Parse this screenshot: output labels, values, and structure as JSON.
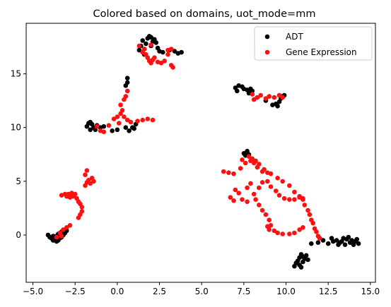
{
  "chart_data": {
    "type": "scatter",
    "title": "Colored based on domains, uot_mode=mm",
    "xlabel": "",
    "ylabel": "",
    "xlim": [
      -5.4,
      15.3
    ],
    "ylim": [
      -4.4,
      19.7
    ],
    "xticks": [
      -5.0,
      -2.5,
      0.0,
      2.5,
      5.0,
      7.5,
      10.0,
      12.5,
      15.0
    ],
    "xtick_labels": [
      "−5.0",
      "−2.5",
      "0.0",
      "2.5",
      "5.0",
      "7.5",
      "10.0",
      "12.5",
      "15.0"
    ],
    "yticks": [
      0,
      5,
      10,
      15
    ],
    "ytick_labels": [
      "0",
      "5",
      "10",
      "15"
    ],
    "grid": false,
    "legend_position": "top-right",
    "series": [
      {
        "name": "ADT",
        "color": "#000000",
        "points": [
          [
            -4.1,
            0.0
          ],
          [
            -4.0,
            -0.2
          ],
          [
            -3.9,
            -0.3
          ],
          [
            -3.8,
            -0.5
          ],
          [
            -3.7,
            -0.4
          ],
          [
            -3.6,
            -0.6
          ],
          [
            -3.5,
            -0.5
          ],
          [
            -3.4,
            -0.3
          ],
          [
            -3.3,
            -0.2
          ],
          [
            -3.2,
            0.0
          ],
          [
            -3.1,
            0.2
          ],
          [
            -3.0,
            0.4
          ],
          [
            -3.5,
            0.1
          ],
          [
            -3.6,
            -0.1
          ],
          [
            -3.3,
            0.3
          ],
          [
            -3.8,
            -0.1
          ],
          [
            -3.4,
            0.0
          ],
          [
            -1.8,
            10.1
          ],
          [
            -1.7,
            10.4
          ],
          [
            -1.6,
            10.5
          ],
          [
            -1.5,
            10.3
          ],
          [
            -1.4,
            10.0
          ],
          [
            -1.6,
            9.8
          ],
          [
            -1.3,
            9.8
          ],
          [
            -1.2,
            10.2
          ],
          [
            -1.0,
            10.0
          ],
          [
            -0.8,
            10.1
          ],
          [
            -0.3,
            9.7
          ],
          [
            0.0,
            9.8
          ],
          [
            0.5,
            10.0
          ],
          [
            0.7,
            9.7
          ],
          [
            0.9,
            10.0
          ],
          [
            1.1,
            10.3
          ],
          [
            1.0,
            9.9
          ],
          [
            0.6,
            14.2
          ],
          [
            0.6,
            14.6
          ],
          [
            0.5,
            13.9
          ],
          [
            1.3,
            17.2
          ],
          [
            1.4,
            17.6
          ],
          [
            1.5,
            18.1
          ],
          [
            1.6,
            17.3
          ],
          [
            1.7,
            17.8
          ],
          [
            1.8,
            18.3
          ],
          [
            1.9,
            18.5
          ],
          [
            2.0,
            18.4
          ],
          [
            2.1,
            18.0
          ],
          [
            2.2,
            18.2
          ],
          [
            2.3,
            17.9
          ],
          [
            2.4,
            17.4
          ],
          [
            2.5,
            17.1
          ],
          [
            2.7,
            17.0
          ],
          [
            3.1,
            17.2
          ],
          [
            3.4,
            17.1
          ],
          [
            3.6,
            16.9
          ],
          [
            3.8,
            17.0
          ],
          [
            1.6,
            16.8
          ],
          [
            2.0,
            17.6
          ],
          [
            7.0,
            13.7
          ],
          [
            7.1,
            13.4
          ],
          [
            7.2,
            13.9
          ],
          [
            7.4,
            13.8
          ],
          [
            7.5,
            13.6
          ],
          [
            7.7,
            13.5
          ],
          [
            7.8,
            13.2
          ],
          [
            7.9,
            13.6
          ],
          [
            8.0,
            13.4
          ],
          [
            8.8,
            12.5
          ],
          [
            9.2,
            12.1
          ],
          [
            9.5,
            12.0
          ],
          [
            9.6,
            12.4
          ],
          [
            9.8,
            12.9
          ],
          [
            9.9,
            13.0
          ],
          [
            9.7,
            12.7
          ],
          [
            9.4,
            12.2
          ],
          [
            7.5,
            7.6
          ],
          [
            7.7,
            7.8
          ],
          [
            7.8,
            7.5
          ],
          [
            7.6,
            7.4
          ],
          [
            10.5,
            -2.9
          ],
          [
            10.6,
            -2.6
          ],
          [
            10.7,
            -2.4
          ],
          [
            10.8,
            -2.1
          ],
          [
            10.9,
            -1.8
          ],
          [
            11.0,
            -2.5
          ],
          [
            11.1,
            -2.2
          ],
          [
            11.2,
            -1.9
          ],
          [
            10.8,
            -2.8
          ],
          [
            11.0,
            -2.0
          ],
          [
            10.9,
            -3.0
          ],
          [
            11.3,
            -2.3
          ],
          [
            11.5,
            -0.8
          ],
          [
            11.9,
            -0.7
          ],
          [
            12.2,
            -0.5
          ],
          [
            12.5,
            -0.8
          ],
          [
            12.8,
            -0.6
          ],
          [
            13.0,
            -0.5
          ],
          [
            13.2,
            -0.7
          ],
          [
            13.4,
            -0.3
          ],
          [
            13.5,
            -0.9
          ],
          [
            13.6,
            -0.4
          ],
          [
            13.7,
            -0.2
          ],
          [
            13.8,
            -0.7
          ],
          [
            13.9,
            -0.5
          ],
          [
            14.0,
            -0.9
          ],
          [
            14.1,
            -0.6
          ],
          [
            14.2,
            -0.4
          ],
          [
            14.3,
            -0.8
          ],
          [
            13.3,
            -0.6
          ],
          [
            13.1,
            -0.9
          ],
          [
            12.7,
            -0.3
          ]
        ]
      },
      {
        "name": "Gene Expression",
        "color": "#ff1010",
        "points": [
          [
            -3.6,
            -0.2
          ],
          [
            -3.4,
            0.2
          ],
          [
            -3.2,
            0.5
          ],
          [
            -3.0,
            0.7
          ],
          [
            -2.8,
            0.9
          ],
          [
            -3.3,
            -0.1
          ],
          [
            -3.3,
            3.7
          ],
          [
            -3.1,
            3.8
          ],
          [
            -2.9,
            3.8
          ],
          [
            -2.7,
            3.9
          ],
          [
            -2.5,
            3.8
          ],
          [
            -2.4,
            3.4
          ],
          [
            -2.3,
            3.1
          ],
          [
            -2.2,
            2.9
          ],
          [
            -2.1,
            2.6
          ],
          [
            -2.1,
            2.2
          ],
          [
            -2.2,
            1.9
          ],
          [
            -2.3,
            1.6
          ],
          [
            -2.6,
            3.6
          ],
          [
            -2.8,
            3.5
          ],
          [
            -3.0,
            3.6
          ],
          [
            -1.9,
            5.6
          ],
          [
            -1.8,
            6.0
          ],
          [
            -1.9,
            4.6
          ],
          [
            -1.8,
            4.9
          ],
          [
            -1.7,
            5.1
          ],
          [
            -1.5,
            5.3
          ],
          [
            -1.4,
            5.0
          ],
          [
            -1.6,
            4.8
          ],
          [
            -1.0,
            9.7
          ],
          [
            -0.5,
            10.2
          ],
          [
            -0.2,
            10.8
          ],
          [
            0.0,
            11.0
          ],
          [
            0.2,
            11.3
          ],
          [
            0.3,
            11.6
          ],
          [
            0.2,
            12.1
          ],
          [
            0.4,
            12.6
          ],
          [
            0.5,
            12.9
          ],
          [
            0.6,
            13.4
          ],
          [
            0.4,
            11.0
          ],
          [
            0.6,
            10.7
          ],
          [
            0.8,
            10.5
          ],
          [
            1.2,
            10.6
          ],
          [
            1.5,
            10.7
          ],
          [
            1.8,
            10.8
          ],
          [
            2.1,
            10.7
          ],
          [
            -1.2,
            10.1
          ],
          [
            -0.8,
            9.6
          ],
          [
            0.1,
            10.4
          ],
          [
            1.3,
            17.6
          ],
          [
            1.5,
            17.0
          ],
          [
            1.7,
            16.8
          ],
          [
            1.8,
            16.5
          ],
          [
            1.9,
            16.2
          ],
          [
            2.0,
            16.0
          ],
          [
            2.1,
            16.3
          ],
          [
            2.2,
            16.5
          ],
          [
            2.4,
            16.1
          ],
          [
            2.6,
            16.0
          ],
          [
            2.8,
            16.2
          ],
          [
            3.0,
            16.8
          ],
          [
            3.2,
            15.8
          ],
          [
            3.3,
            15.6
          ],
          [
            3.0,
            17.2
          ],
          [
            3.2,
            17.3
          ],
          [
            1.6,
            17.3
          ],
          [
            2.0,
            17.7
          ],
          [
            6.3,
            5.9
          ],
          [
            6.6,
            5.8
          ],
          [
            6.9,
            5.7
          ],
          [
            7.3,
            6.2
          ],
          [
            7.6,
            6.7
          ],
          [
            7.9,
            6.9
          ],
          [
            8.1,
            6.7
          ],
          [
            8.3,
            6.3
          ],
          [
            8.6,
            5.9
          ],
          [
            9.1,
            5.7
          ],
          [
            9.5,
            5.3
          ],
          [
            9.8,
            5.0
          ],
          [
            10.2,
            4.6
          ],
          [
            10.5,
            4.0
          ],
          [
            10.8,
            3.6
          ],
          [
            11.0,
            3.3
          ],
          [
            11.1,
            2.8
          ],
          [
            11.3,
            2.3
          ],
          [
            11.4,
            1.9
          ],
          [
            11.5,
            1.4
          ],
          [
            11.6,
            1.1
          ],
          [
            11.7,
            0.6
          ],
          [
            11.8,
            0.3
          ],
          [
            11.9,
            -0.1
          ],
          [
            12.0,
            -0.3
          ],
          [
            7.0,
            4.2
          ],
          [
            7.2,
            3.9
          ],
          [
            7.4,
            3.3
          ],
          [
            7.7,
            3.1
          ],
          [
            8.1,
            3.8
          ],
          [
            8.4,
            4.4
          ],
          [
            8.6,
            4.9
          ],
          [
            8.9,
            5.0
          ],
          [
            9.1,
            4.5
          ],
          [
            9.4,
            4.1
          ],
          [
            9.6,
            3.7
          ],
          [
            9.9,
            3.4
          ],
          [
            10.2,
            3.3
          ],
          [
            10.5,
            3.3
          ],
          [
            10.8,
            3.5
          ],
          [
            11.0,
            3.4
          ],
          [
            7.7,
            4.4
          ],
          [
            7.9,
            4.8
          ],
          [
            6.7,
            3.5
          ],
          [
            6.9,
            3.2
          ],
          [
            8.2,
            3.3
          ],
          [
            8.4,
            2.8
          ],
          [
            8.6,
            2.3
          ],
          [
            8.8,
            1.9
          ],
          [
            9.0,
            1.4
          ],
          [
            9.1,
            0.9
          ],
          [
            9.3,
            0.4
          ],
          [
            9.5,
            0.2
          ],
          [
            9.8,
            0.1
          ],
          [
            10.2,
            0.1
          ],
          [
            10.5,
            0.2
          ],
          [
            10.8,
            0.5
          ],
          [
            11.0,
            0.7
          ],
          [
            9.0,
            0.5
          ],
          [
            8.9,
            0.8
          ],
          [
            8.1,
            12.6
          ],
          [
            8.3,
            12.8
          ],
          [
            8.5,
            13.0
          ],
          [
            8.8,
            12.7
          ],
          [
            9.0,
            12.9
          ],
          [
            9.3,
            12.8
          ],
          [
            9.6,
            13.0
          ],
          [
            9.8,
            12.8
          ],
          [
            8.0,
            13.1
          ],
          [
            7.4,
            7.0
          ],
          [
            7.8,
            7.3
          ],
          [
            8.0,
            7.1
          ],
          [
            8.2,
            6.9
          ],
          [
            8.4,
            6.6
          ],
          [
            8.7,
            6.1
          ],
          [
            8.9,
            5.8
          ]
        ]
      }
    ]
  }
}
